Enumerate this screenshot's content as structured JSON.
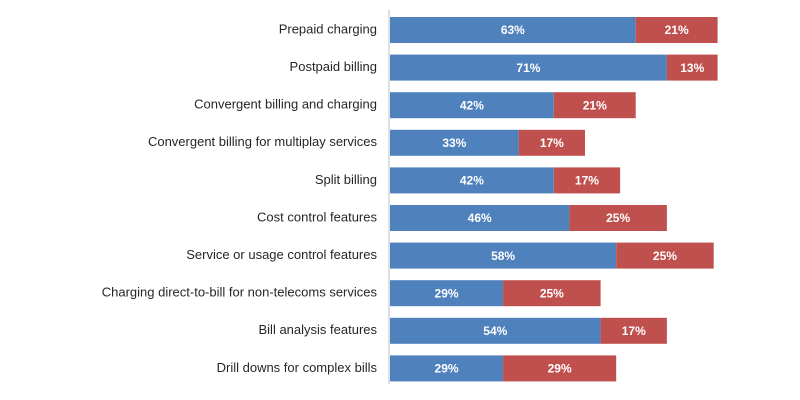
{
  "chart_data": {
    "type": "bar",
    "orientation": "horizontal",
    "stacked": true,
    "title": "",
    "xlabel": "",
    "ylabel": "",
    "xlim": [
      0,
      100
    ],
    "grid": false,
    "legend": "none",
    "categories": [
      "Prepaid charging",
      "Postpaid billing",
      "Convergent billing and charging",
      "Convergent billing for multiplay services",
      "Split billing",
      "Cost control features",
      "Service or usage control features",
      "Charging direct-to-bill for non-telecoms services",
      "Bill analysis features",
      "Drill downs for complex bills"
    ],
    "series": [
      {
        "color": "#4f81bd",
        "values": [
          63,
          71,
          42,
          33,
          42,
          46,
          58,
          29,
          54,
          29
        ],
        "labels": [
          "63%",
          "71%",
          "42%",
          "33%",
          "42%",
          "46%",
          "58%",
          "29%",
          "54%",
          "29%"
        ]
      },
      {
        "color": "#c0504d",
        "values": [
          21,
          13,
          21,
          17,
          17,
          25,
          25,
          25,
          17,
          29
        ],
        "labels": [
          "21%",
          "13%",
          "21%",
          "17%",
          "17%",
          "25%",
          "25%",
          "25%",
          "17%",
          "29%"
        ]
      }
    ]
  }
}
